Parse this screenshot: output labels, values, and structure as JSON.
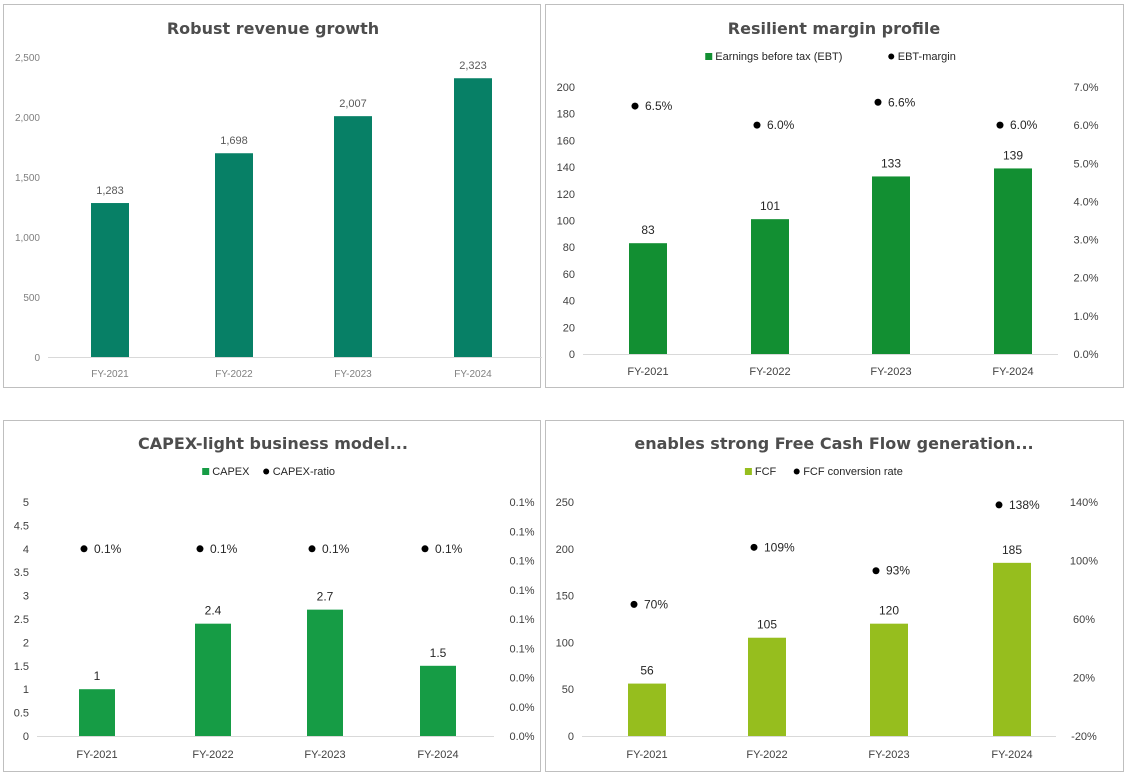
{
  "chart_data": [
    {
      "type": "bar",
      "title": "Robust revenue growth",
      "categories": [
        "FY-2021",
        "FY-2022",
        "FY-2023",
        "FY-2024"
      ],
      "series": [
        {
          "values": [
            1283,
            1698,
            2007,
            2323
          ],
          "value_labels": [
            "1,283",
            "1,698",
            "2,007",
            "2,323"
          ],
          "color": "#078066"
        }
      ],
      "ylim": [
        0,
        2500
      ],
      "y_ticks": [
        "0",
        "500",
        "1,000",
        "1,500",
        "2,000",
        "2,500"
      ],
      "grid": false,
      "legend": "none"
    },
    {
      "type": "bar",
      "title": "Resilient margin profile",
      "categories": [
        "FY-2021",
        "FY-2022",
        "FY-2023",
        "FY-2024"
      ],
      "series": [
        {
          "name": "Earnings before tax (EBT)",
          "kind": "bar",
          "axis": "left",
          "values": [
            83,
            101,
            133,
            139
          ],
          "value_labels": [
            "83",
            "101",
            "133",
            "139"
          ],
          "color": "#128f32"
        },
        {
          "name": "EBT-margin",
          "kind": "scatter",
          "axis": "right",
          "values": [
            6.5,
            6.0,
            6.6,
            6.0
          ],
          "value_labels": [
            "6.5%",
            "6.0%",
            "6.6%",
            "6.0%"
          ],
          "color": "#000000"
        }
      ],
      "ylim": [
        0,
        200
      ],
      "y_ticks": [
        "0",
        "20",
        "40",
        "60",
        "80",
        "100",
        "120",
        "140",
        "160",
        "180",
        "200"
      ],
      "y2lim": [
        0,
        7
      ],
      "y2_ticks": [
        "0.0%",
        "1.0%",
        "2.0%",
        "3.0%",
        "4.0%",
        "5.0%",
        "6.0%",
        "7.0%"
      ],
      "grid": false,
      "legend": "top"
    },
    {
      "type": "bar",
      "title": "CAPEX-light business model...",
      "categories": [
        "FY-2021",
        "FY-2022",
        "FY-2023",
        "FY-2024"
      ],
      "series": [
        {
          "name": "CAPEX",
          "kind": "bar",
          "axis": "left",
          "values": [
            1,
            2.4,
            2.7,
            1.5
          ],
          "value_labels": [
            "1",
            "2.4",
            "2.7",
            "1.5"
          ],
          "color": "#169c45"
        },
        {
          "name": "CAPEX-ratio",
          "kind": "scatter",
          "axis": "right",
          "values": [
            0.08,
            0.08,
            0.08,
            0.08
          ],
          "value_labels": [
            "0.1%",
            "0.1%",
            "0.1%",
            "0.1%"
          ],
          "color": "#000000"
        }
      ],
      "ylim": [
        0,
        5
      ],
      "y_ticks": [
        "0",
        "0.5",
        "1",
        "1.5",
        "2",
        "2.5",
        "3",
        "3.5",
        "4",
        "4.5",
        "5"
      ],
      "y2lim": [
        0,
        0.1
      ],
      "y2_ticks": [
        "0.0%",
        "0.0%",
        "0.0%",
        "0.1%",
        "0.1%",
        "0.1%",
        "0.1%",
        "0.1%",
        "0.1%"
      ],
      "grid": false,
      "legend": "top"
    },
    {
      "type": "bar",
      "title": "enables strong Free Cash Flow generation...",
      "categories": [
        "FY-2021",
        "FY-2022",
        "FY-2023",
        "FY-2024"
      ],
      "series": [
        {
          "name": "FCF",
          "kind": "bar",
          "axis": "left",
          "values": [
            56,
            105,
            120,
            185
          ],
          "value_labels": [
            "56",
            "105",
            "120",
            "185"
          ],
          "color": "#96be1e"
        },
        {
          "name": "FCF conversion rate",
          "kind": "scatter",
          "axis": "right",
          "values": [
            70,
            109,
            93,
            138
          ],
          "value_labels": [
            "70%",
            "109%",
            "93%",
            "138%"
          ],
          "color": "#000000"
        }
      ],
      "ylim": [
        0,
        250
      ],
      "y_ticks": [
        "0",
        "50",
        "100",
        "150",
        "200",
        "250"
      ],
      "y2lim": [
        -20,
        140
      ],
      "y2_ticks": [
        "-20%",
        "20%",
        "60%",
        "100%",
        "140%"
      ],
      "grid": false,
      "legend": "top"
    }
  ]
}
